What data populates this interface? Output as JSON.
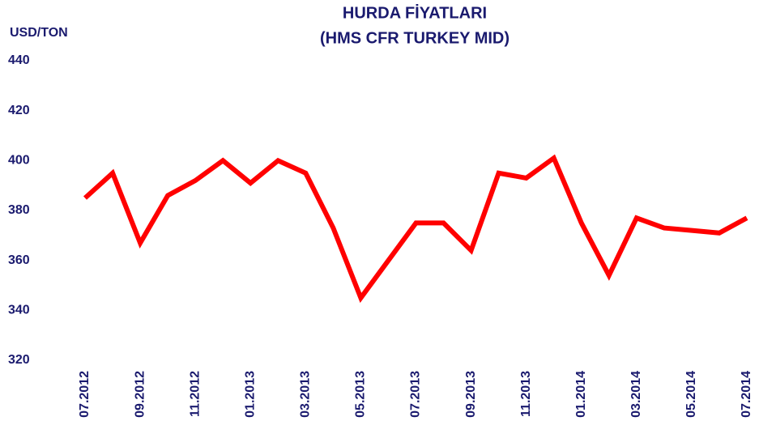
{
  "chart_data": {
    "type": "line",
    "title": "HURDA FİYATLARI",
    "subtitle": "(HMS CFR TURKEY MID)",
    "y_label": "USD/TON",
    "categories": [
      "07.2012",
      null,
      "09.2012",
      null,
      "11.2012",
      null,
      "01.2013",
      null,
      "03.2013",
      null,
      "05.2013",
      null,
      "07.2013",
      null,
      "09.2013",
      null,
      "11.2013",
      null,
      "01.2014",
      null,
      "03.2014",
      null,
      "05.2014",
      null,
      "07.2014"
    ],
    "series": [
      {
        "name": "HMS CFR TURKEY MID",
        "color": "#ff0000",
        "values": [
          385,
          395,
          367,
          386,
          392,
          400,
          391,
          400,
          395,
          373,
          345,
          360,
          375,
          375,
          364,
          395,
          393,
          401,
          375,
          354,
          377,
          373,
          372,
          371,
          377
        ]
      }
    ],
    "ylim": [
      320,
      440
    ],
    "yticks": [
      320,
      340,
      360,
      380,
      400,
      420,
      440
    ],
    "grid": false
  }
}
